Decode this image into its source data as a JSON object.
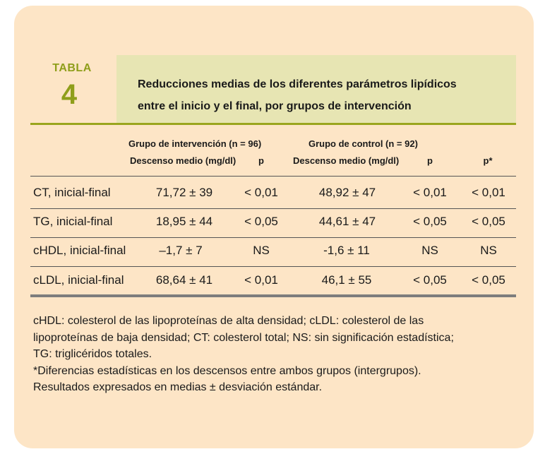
{
  "table": {
    "tabla_label": "TABLA",
    "tabla_number": "4",
    "title_line1": "Reducciones medias de los diferentes parámetros lipídicos",
    "title_line2": "entre el inicio y el final, por grupos de intervención",
    "group_intervention": "Grupo de intervención (n = 96)",
    "group_control": "Grupo de control (n = 92)",
    "columns": {
      "descenso_int": "Descenso medio (mg/dl)",
      "p_int": "p",
      "descenso_ctrl": "Descenso medio (mg/dl)",
      "p_ctrl": "p",
      "p_star": "p*"
    },
    "rows": [
      {
        "label": "CT, inicial-final",
        "desc_int": "71,72 ± 39",
        "p_int": "< 0,01",
        "desc_ctrl": "48,92 ± 47",
        "p_ctrl": "< 0,01",
        "p_star": "< 0,01"
      },
      {
        "label": "TG, inicial-final",
        "desc_int": "18,95 ± 44",
        "p_int": "< 0,05",
        "desc_ctrl": "44,61 ± 47",
        "p_ctrl": "< 0,05",
        "p_star": "< 0,05"
      },
      {
        "label": "cHDL, inicial-final",
        "desc_int": "–1,7 ± 7",
        "p_int": "NS",
        "desc_ctrl": "-1,6 ± 11",
        "p_ctrl": "NS",
        "p_star": "NS"
      },
      {
        "label": "cLDL, inicial-final",
        "desc_int": "68,64 ± 41",
        "p_int": "< 0,01",
        "desc_ctrl": "46,1 ± 55",
        "p_ctrl": "< 0,05",
        "p_star": "< 0,05"
      }
    ],
    "footnotes": [
      "cHDL: colesterol de las lipoproteínas de alta densidad; cLDL: colesterol de las",
      "lipoproteínas de baja densidad; CT: colesterol total; NS: sin significación estadística;",
      "TG: triglicéridos totales.",
      "*Diferencias estadísticas en los descensos entre ambos grupos (intergrupos).",
      "Resultados expresados en medias ± desviación estándar."
    ]
  }
}
